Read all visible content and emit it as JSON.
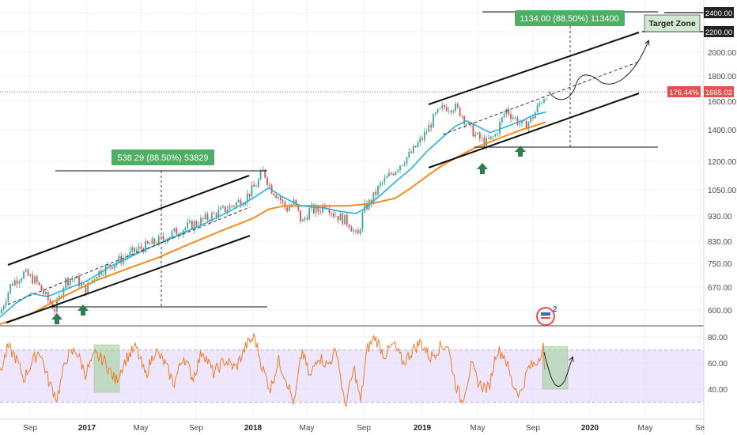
{
  "chart_data": {
    "type": "candlestick",
    "price_pane": {
      "y_scale": "log",
      "ylim": [
        560,
        2450
      ],
      "y_ticks": [
        "600.00",
        "670.00",
        "750.00",
        "830.00",
        "930.00",
        "1050.00",
        "1200.00",
        "1400.00",
        "1600.00",
        "1800.00",
        "2000.00",
        "2200.00",
        "2400.00"
      ],
      "last_price_label": "1665.02",
      "last_price": 1665.02,
      "percent_label": "176.44%",
      "moving_average_colors": {
        "fast": "#2ab2d6",
        "slow": "#f28c1f"
      }
    },
    "oscillator_pane": {
      "ylim": [
        20,
        90
      ],
      "y_ticks": [
        "40.00",
        "60.00",
        "80.00"
      ],
      "band": [
        30,
        70
      ],
      "line_color": "#f07d2b",
      "band_color": "#e7defb"
    },
    "x_ticks": [
      "Sep",
      "2017",
      "May",
      "Sep",
      "2018",
      "May",
      "Sep",
      "2019",
      "May",
      "Sep",
      "2020",
      "May",
      "Se"
    ],
    "x_tick_bold": [
      "2017",
      "2018",
      "2019",
      "2020"
    ],
    "annotations": {
      "measure_2017": "538.29 (88.50%) 53829",
      "measure_2019": "1134.00 (88.50%) 113400",
      "target_zone": "Target Zone",
      "target_2200": "2200.00",
      "target_2400": "2400.00"
    },
    "colors": {
      "up_candle": "#3da89a",
      "down_candle": "#e2514e",
      "measure_box": "#4caf63",
      "target_box": "#cfe8cf",
      "arrow": "#2e7d4f",
      "price_line": "#e2514e"
    }
  },
  "footer_logo_text": "2"
}
